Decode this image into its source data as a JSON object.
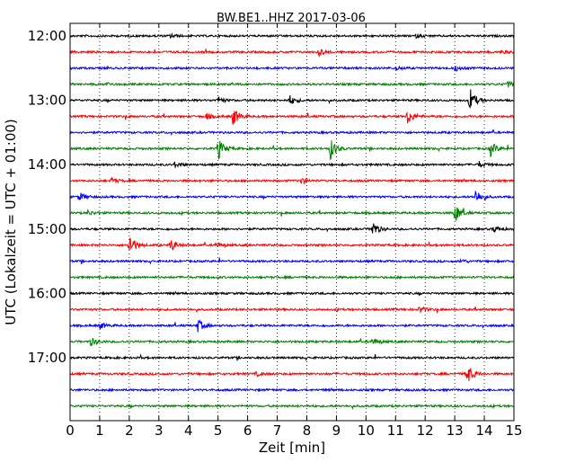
{
  "chart_data": {
    "type": "line",
    "title": "BW.BE1..HHZ 2017-03-06",
    "xlabel": "Zeit  [min]",
    "ylabel": "UTC (Lokalzeit = UTC + 01:00)",
    "xlim": [
      0,
      15
    ],
    "x_ticks": [
      0,
      1,
      2,
      3,
      4,
      5,
      6,
      7,
      8,
      9,
      10,
      11,
      12,
      13,
      14,
      15
    ],
    "x_tick_labels": [
      "0",
      "1",
      "2",
      "3",
      "4",
      "5",
      "6",
      "7",
      "8",
      "9",
      "10",
      "11",
      "12",
      "13",
      "14",
      "15"
    ],
    "y_tick_labels": [
      "12:00",
      "13:00",
      "14:00",
      "15:00",
      "16:00",
      "17:00"
    ],
    "row_start_times": [
      "12:00",
      "12:15",
      "12:30",
      "12:45",
      "13:00",
      "13:15",
      "13:30",
      "13:45",
      "14:00",
      "14:15",
      "14:30",
      "14:45",
      "15:00",
      "15:15",
      "15:30",
      "15:45",
      "16:00",
      "16:15",
      "16:30",
      "16:45",
      "17:00",
      "17:15",
      "17:30",
      "17:45"
    ],
    "row_colors": [
      "#000000",
      "#ff0000",
      "#0000ff",
      "#008000"
    ],
    "grid": "vertical dotted",
    "events": [
      {
        "row": 0,
        "x": 3.4,
        "amp": 0.2
      },
      {
        "row": 0,
        "x": 11.7,
        "amp": 0.15
      },
      {
        "row": 1,
        "x": 8.4,
        "amp": 0.35
      },
      {
        "row": 1,
        "x": 14.6,
        "amp": 0.15
      },
      {
        "row": 2,
        "x": 11.0,
        "amp": 0.2
      },
      {
        "row": 2,
        "x": 13.0,
        "amp": 0.25
      },
      {
        "row": 3,
        "x": 1.2,
        "amp": 0.15
      },
      {
        "row": 3,
        "x": 14.8,
        "amp": 0.3
      },
      {
        "row": 4,
        "x": 5.0,
        "amp": 0.3
      },
      {
        "row": 4,
        "x": 7.4,
        "amp": 0.5
      },
      {
        "row": 4,
        "x": 13.5,
        "amp": 1.2
      },
      {
        "row": 5,
        "x": 4.6,
        "amp": 0.3
      },
      {
        "row": 5,
        "x": 5.5,
        "amp": 0.9
      },
      {
        "row": 5,
        "x": 11.4,
        "amp": 0.8
      },
      {
        "row": 7,
        "x": 5.0,
        "amp": 1.0
      },
      {
        "row": 7,
        "x": 8.8,
        "amp": 1.0
      },
      {
        "row": 7,
        "x": 14.2,
        "amp": 0.7
      },
      {
        "row": 8,
        "x": 3.5,
        "amp": 0.3
      },
      {
        "row": 8,
        "x": 13.8,
        "amp": 0.3
      },
      {
        "row": 9,
        "x": 1.4,
        "amp": 0.3
      },
      {
        "row": 9,
        "x": 7.8,
        "amp": 0.3
      },
      {
        "row": 10,
        "x": 0.3,
        "amp": 0.4
      },
      {
        "row": 10,
        "x": 13.7,
        "amp": 0.7
      },
      {
        "row": 11,
        "x": 13.0,
        "amp": 0.9
      },
      {
        "row": 11,
        "x": 0.6,
        "amp": 0.2
      },
      {
        "row": 12,
        "x": 10.2,
        "amp": 0.8
      },
      {
        "row": 12,
        "x": 14.3,
        "amp": 0.3
      },
      {
        "row": 13,
        "x": 2.0,
        "amp": 1.1
      },
      {
        "row": 13,
        "x": 3.4,
        "amp": 0.6
      },
      {
        "row": 13,
        "x": 4.9,
        "amp": 0.2
      },
      {
        "row": 14,
        "x": 13.2,
        "amp": 0.2
      },
      {
        "row": 17,
        "x": 11.8,
        "amp": 0.3
      },
      {
        "row": 18,
        "x": 1.0,
        "amp": 0.3
      },
      {
        "row": 18,
        "x": 4.3,
        "amp": 0.6
      },
      {
        "row": 19,
        "x": 0.7,
        "amp": 0.4
      },
      {
        "row": 19,
        "x": 10.2,
        "amp": 0.3
      },
      {
        "row": 21,
        "x": 6.3,
        "amp": 0.2
      },
      {
        "row": 21,
        "x": 13.4,
        "amp": 1.1
      }
    ]
  }
}
